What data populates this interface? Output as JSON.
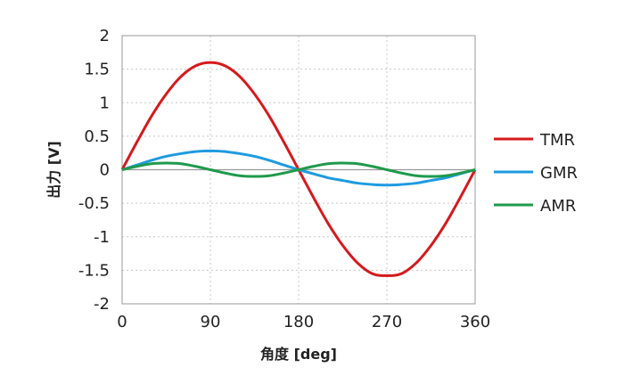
{
  "chart_data": {
    "type": "line",
    "xlabel": "角度 [deg]",
    "ylabel": "出力 [V]",
    "xlim": [
      0,
      360
    ],
    "ylim": [
      -2,
      2
    ],
    "x_ticks": [
      0,
      90,
      180,
      270,
      360
    ],
    "y_ticks": [
      2,
      1.5,
      1,
      0.5,
      0,
      -0.5,
      -1,
      -1.5,
      -2
    ],
    "x_tick_labels": [
      "0",
      "90",
      "180",
      "270",
      "360"
    ],
    "y_tick_labels": [
      "2",
      "1.5",
      "1",
      "0.5",
      "0",
      "-0.5",
      "-1",
      "-1.5",
      "-2"
    ],
    "grid": true,
    "legend_position": "right",
    "x": [
      0,
      15,
      30,
      45,
      60,
      75,
      90,
      105,
      120,
      135,
      150,
      165,
      180,
      195,
      210,
      225,
      240,
      255,
      270,
      285,
      300,
      315,
      330,
      345,
      360
    ],
    "series": [
      {
        "name": "TMR",
        "color": "#d7191c",
        "values": [
          0,
          0.41,
          0.8,
          1.13,
          1.39,
          1.55,
          1.6,
          1.55,
          1.39,
          1.13,
          0.8,
          0.41,
          0,
          -0.41,
          -0.8,
          -1.13,
          -1.39,
          -1.55,
          -1.58,
          -1.55,
          -1.39,
          -1.13,
          -0.8,
          -0.41,
          0
        ]
      },
      {
        "name": "GMR",
        "color": "#1e9be0",
        "values": [
          0,
          0.07,
          0.14,
          0.2,
          0.24,
          0.27,
          0.28,
          0.27,
          0.24,
          0.2,
          0.14,
          0.07,
          0,
          -0.06,
          -0.12,
          -0.16,
          -0.2,
          -0.22,
          -0.23,
          -0.22,
          -0.2,
          -0.16,
          -0.12,
          -0.06,
          0
        ]
      },
      {
        "name": "AMR",
        "color": "#1f9a4b",
        "values": [
          0,
          0.05,
          0.09,
          0.1,
          0.09,
          0.05,
          0,
          -0.05,
          -0.09,
          -0.1,
          -0.09,
          -0.05,
          0,
          0.05,
          0.09,
          0.1,
          0.09,
          0.05,
          0,
          -0.05,
          -0.09,
          -0.1,
          -0.09,
          -0.05,
          0
        ]
      }
    ]
  }
}
